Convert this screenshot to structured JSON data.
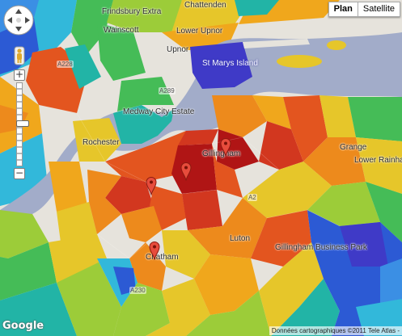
{
  "map_type": {
    "options": [
      "Plan",
      "Satellite"
    ],
    "selected": "Plan"
  },
  "controls": {
    "zoom_in": "+",
    "zoom_out": "−"
  },
  "places": [
    "Frindsbury Extra",
    "Wainscott",
    "Chattenden",
    "Lower Upnor",
    "Upnor",
    "St Marys Island",
    "Medway City Estate",
    "Rochester",
    "Gillingham",
    "Chatham",
    "Luton",
    "Gillingham Business Park",
    "Grange",
    "Lower Rainham Rd"
  ],
  "roads": [
    "A228",
    "A289",
    "A2",
    "A230"
  ],
  "markers": [
    {
      "label": "marker-chatham-centre"
    },
    {
      "label": "marker-chatham-west"
    },
    {
      "label": "marker-gillingham"
    },
    {
      "label": "marker-chatham-south"
    }
  ],
  "colors": {
    "water": "#a2acc9",
    "land": "#e6e3dc",
    "deep_red": "#b01515",
    "red": "#d2371f",
    "orange_red": "#e3551f",
    "orange": "#ed8a1c",
    "amber": "#f0a71c",
    "yellow": "#e6c62a",
    "lime": "#9ccc39",
    "green": "#45bc57",
    "teal": "#22b4a6",
    "cyan": "#32b8da",
    "sky": "#3b8fe4",
    "blue": "#2c5ad4",
    "indigo": "#3f3ac7"
  },
  "branding": {
    "logo": "Google",
    "credit": "Données cartographiques ©2011 Tele Atlas -"
  }
}
